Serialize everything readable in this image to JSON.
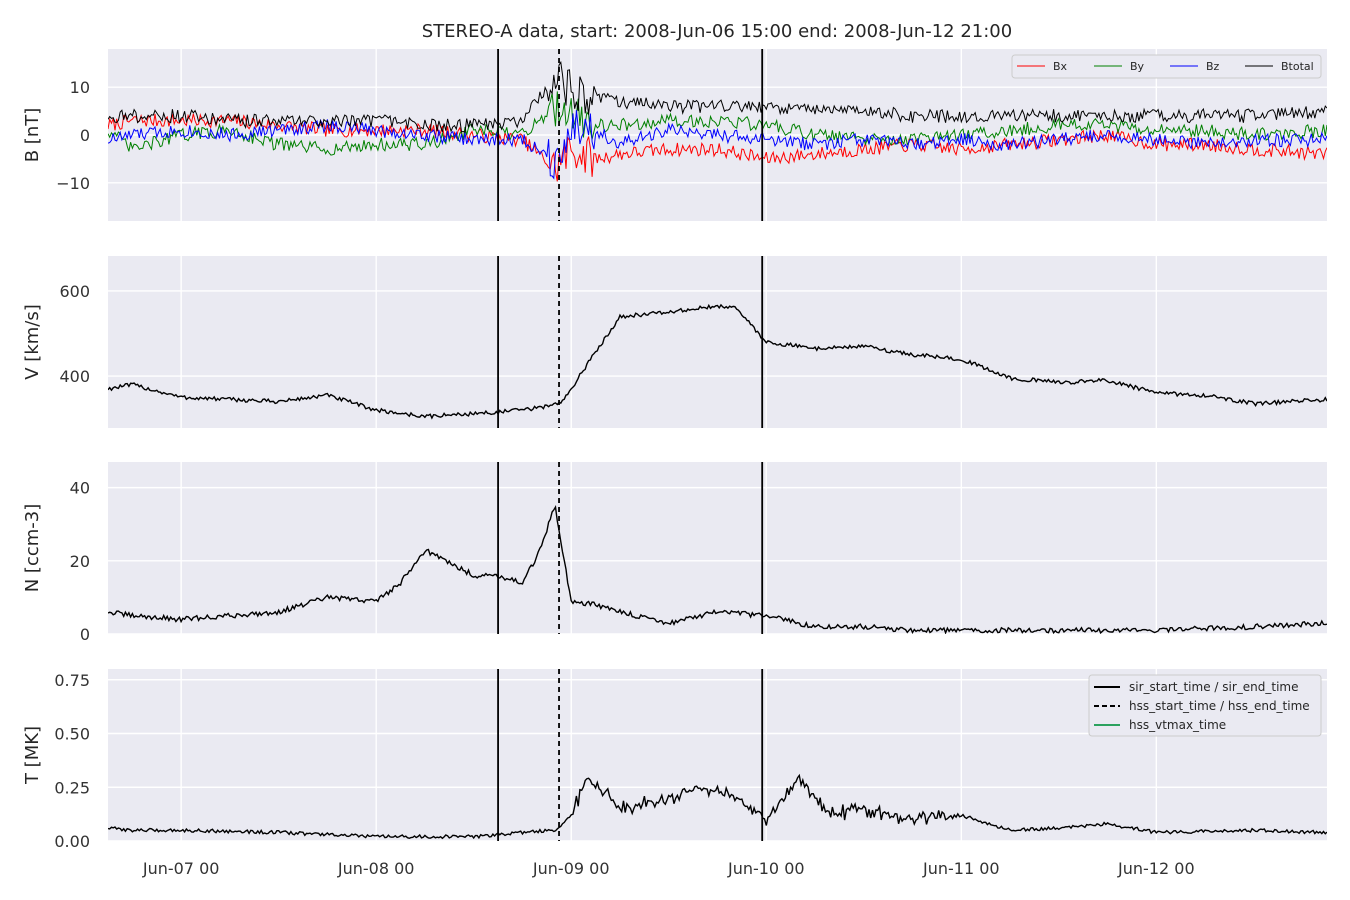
{
  "title": "STEREO-A data, start: 2008-Jun-06 15:00  end: 2008-Jun-12 21:00",
  "x_tick_labels": [
    "Jun-07 00",
    "Jun-08 00",
    "Jun-09 00",
    "Jun-10 00",
    "Jun-11 00",
    "Jun-12 00"
  ],
  "colors": {
    "panel_bg": "#eaeaf2",
    "grid": "#ffffff",
    "bx": "#ff0000",
    "by": "#008000",
    "bz": "#0000ff",
    "btotal": "#000000",
    "hss_vtmax": "#2ca25f"
  },
  "chart_data": [
    {
      "type": "line",
      "panel": "B",
      "ylabel": "B [nT]",
      "ylim": [
        -18,
        18
      ],
      "yticks": [
        -10,
        0,
        10
      ],
      "ytick_labels": [
        "−10",
        "0",
        "10"
      ],
      "xlim": [
        "2008-06-06 15:00",
        "2008-06-12 21:00"
      ],
      "grid": true,
      "legend": {
        "placement": "top-right",
        "entries": [
          "Bx",
          "By",
          "Bz",
          "Btotal"
        ]
      },
      "series": [
        {
          "name": "Bx",
          "color": "#ff0000",
          "x": [
            "2008-06-06 15:00",
            "2008-06-06 18:00",
            "2008-06-07 00:00",
            "2008-06-07 06:00",
            "2008-06-07 12:00",
            "2008-06-07 18:00",
            "2008-06-08 00:00",
            "2008-06-08 06:00",
            "2008-06-08 12:00",
            "2008-06-08 18:00",
            "2008-06-08 22:00",
            "2008-06-09 00:00",
            "2008-06-09 03:00",
            "2008-06-09 06:00",
            "2008-06-09 12:00",
            "2008-06-09 18:00",
            "2008-06-10 00:00",
            "2008-06-10 06:00",
            "2008-06-10 12:00",
            "2008-06-10 18:00",
            "2008-06-11 00:00",
            "2008-06-11 06:00",
            "2008-06-11 12:00",
            "2008-06-11 18:00",
            "2008-06-12 00:00",
            "2008-06-12 06:00",
            "2008-06-12 12:00",
            "2008-06-12 21:00"
          ],
          "values": [
            2,
            3,
            3,
            3,
            2,
            1,
            1,
            1,
            0,
            -1,
            -7,
            -3,
            -5,
            -4,
            -3,
            -3,
            -5,
            -4,
            -3,
            -2,
            -3,
            -2,
            -1,
            0,
            -2,
            -2,
            -3,
            -4
          ]
        },
        {
          "name": "By",
          "color": "#008000",
          "x": [
            "2008-06-06 15:00",
            "2008-06-06 18:00",
            "2008-06-07 00:00",
            "2008-06-07 06:00",
            "2008-06-07 12:00",
            "2008-06-07 18:00",
            "2008-06-08 00:00",
            "2008-06-08 06:00",
            "2008-06-08 12:00",
            "2008-06-08 18:00",
            "2008-06-08 22:00",
            "2008-06-09 00:00",
            "2008-06-09 03:00",
            "2008-06-09 06:00",
            "2008-06-09 12:00",
            "2008-06-09 18:00",
            "2008-06-10 00:00",
            "2008-06-10 06:00",
            "2008-06-10 12:00",
            "2008-06-10 18:00",
            "2008-06-11 00:00",
            "2008-06-11 06:00",
            "2008-06-11 12:00",
            "2008-06-11 18:00",
            "2008-06-12 00:00",
            "2008-06-12 06:00",
            "2008-06-12 12:00",
            "2008-06-12 21:00"
          ],
          "values": [
            1,
            -3,
            0,
            1,
            -2,
            -3,
            -2,
            -2,
            1,
            0,
            6,
            5,
            2,
            2,
            3,
            3,
            2,
            0,
            -1,
            -1,
            0,
            1,
            2,
            2,
            1,
            1,
            0,
            1
          ]
        },
        {
          "name": "Bz",
          "color": "#0000ff",
          "x": [
            "2008-06-06 15:00",
            "2008-06-06 18:00",
            "2008-06-07 00:00",
            "2008-06-07 06:00",
            "2008-06-07 12:00",
            "2008-06-07 18:00",
            "2008-06-08 00:00",
            "2008-06-08 06:00",
            "2008-06-08 12:00",
            "2008-06-08 18:00",
            "2008-06-08 22:00",
            "2008-06-09 00:00",
            "2008-06-09 03:00",
            "2008-06-09 06:00",
            "2008-06-09 12:00",
            "2008-06-09 18:00",
            "2008-06-10 00:00",
            "2008-06-10 06:00",
            "2008-06-10 12:00",
            "2008-06-10 18:00",
            "2008-06-11 00:00",
            "2008-06-11 06:00",
            "2008-06-11 12:00",
            "2008-06-11 18:00",
            "2008-06-12 00:00",
            "2008-06-12 06:00",
            "2008-06-12 12:00",
            "2008-06-12 21:00"
          ],
          "values": [
            -1,
            0,
            1,
            0,
            1,
            2,
            1,
            0,
            -1,
            -1,
            -5,
            2,
            1,
            -2,
            1,
            0,
            -1,
            -2,
            -1,
            -2,
            -1,
            -2,
            -1,
            0,
            -1,
            -2,
            -1,
            -1
          ]
        },
        {
          "name": "Btotal",
          "color": "#000000",
          "x": [
            "2008-06-06 15:00",
            "2008-06-06 18:00",
            "2008-06-07 00:00",
            "2008-06-07 06:00",
            "2008-06-07 12:00",
            "2008-06-07 18:00",
            "2008-06-08 00:00",
            "2008-06-08 06:00",
            "2008-06-08 12:00",
            "2008-06-08 18:00",
            "2008-06-08 22:00",
            "2008-06-09 00:00",
            "2008-06-09 03:00",
            "2008-06-09 06:00",
            "2008-06-09 12:00",
            "2008-06-09 18:00",
            "2008-06-10 00:00",
            "2008-06-10 06:00",
            "2008-06-10 12:00",
            "2008-06-10 18:00",
            "2008-06-11 00:00",
            "2008-06-11 06:00",
            "2008-06-11 12:00",
            "2008-06-11 18:00",
            "2008-06-12 00:00",
            "2008-06-12 06:00",
            "2008-06-12 12:00",
            "2008-06-12 21:00"
          ],
          "values": [
            4,
            4,
            4,
            3,
            3,
            3,
            3,
            2,
            2,
            3,
            12,
            9,
            8,
            7,
            6,
            6,
            6,
            5,
            5,
            4,
            4,
            4,
            4,
            4,
            4,
            4,
            4,
            5
          ]
        }
      ]
    },
    {
      "type": "line",
      "panel": "V",
      "ylabel": "V [km/s]",
      "ylim": [
        278,
        682
      ],
      "yticks": [
        400,
        600
      ],
      "ytick_labels": [
        "400",
        "600"
      ],
      "xlim": [
        "2008-06-06 15:00",
        "2008-06-12 21:00"
      ],
      "grid": true,
      "series": [
        {
          "x": [
            "2008-06-06 15:00",
            "2008-06-06 18:00",
            "2008-06-07 00:00",
            "2008-06-07 06:00",
            "2008-06-07 12:00",
            "2008-06-07 18:00",
            "2008-06-08 00:00",
            "2008-06-08 06:00",
            "2008-06-08 12:00",
            "2008-06-08 15:00",
            "2008-06-08 20:00",
            "2008-06-08 23:00",
            "2008-06-09 01:00",
            "2008-06-09 06:00",
            "2008-06-09 12:00",
            "2008-06-09 16:00",
            "2008-06-09 20:00",
            "2008-06-10 00:00",
            "2008-06-10 06:00",
            "2008-06-10 12:00",
            "2008-06-10 18:00",
            "2008-06-11 00:00",
            "2008-06-11 06:00",
            "2008-06-11 12:00",
            "2008-06-11 18:00",
            "2008-06-12 00:00",
            "2008-06-12 06:00",
            "2008-06-12 12:00",
            "2008-06-12 21:00"
          ],
          "values": [
            370,
            380,
            350,
            345,
            340,
            355,
            320,
            305,
            312,
            315,
            325,
            340,
            400,
            540,
            550,
            560,
            565,
            480,
            465,
            470,
            450,
            440,
            395,
            385,
            390,
            360,
            355,
            335,
            345
          ]
        }
      ]
    },
    {
      "type": "line",
      "panel": "N",
      "ylabel": "N [ccm-3]",
      "ylim": [
        0,
        47
      ],
      "yticks": [
        0,
        20,
        40
      ],
      "ytick_labels": [
        "0",
        "20",
        "40"
      ],
      "xlim": [
        "2008-06-06 15:00",
        "2008-06-12 21:00"
      ],
      "grid": true,
      "series": [
        {
          "x": [
            "2008-06-06 15:00",
            "2008-06-06 18:00",
            "2008-06-07 00:00",
            "2008-06-07 06:00",
            "2008-06-07 12:00",
            "2008-06-07 18:00",
            "2008-06-08 00:00",
            "2008-06-08 03:00",
            "2008-06-08 06:00",
            "2008-06-08 12:00",
            "2008-06-08 15:00",
            "2008-06-08 18:00",
            "2008-06-08 20:00",
            "2008-06-08 22:00",
            "2008-06-09 00:00",
            "2008-06-09 03:00",
            "2008-06-09 06:00",
            "2008-06-09 12:00",
            "2008-06-09 18:00",
            "2008-06-10 00:00",
            "2008-06-10 06:00",
            "2008-06-10 12:00",
            "2008-06-10 18:00",
            "2008-06-11 00:00",
            "2008-06-11 12:00",
            "2008-06-12 00:00",
            "2008-06-12 12:00",
            "2008-06-12 21:00"
          ],
          "values": [
            6,
            5,
            4,
            5,
            6,
            10,
            9,
            14,
            23,
            16,
            16,
            14,
            22,
            35,
            9,
            8,
            6,
            3,
            6,
            5,
            2,
            2,
            1,
            1,
            1,
            1,
            2,
            3
          ]
        }
      ]
    },
    {
      "type": "line",
      "panel": "T",
      "ylabel": "T [MK]",
      "ylim": [
        0,
        0.8
      ],
      "yticks": [
        0.0,
        0.25,
        0.5,
        0.75
      ],
      "ytick_labels": [
        "0.00",
        "0.25",
        "0.50",
        "0.75"
      ],
      "xlim": [
        "2008-06-06 15:00",
        "2008-06-12 21:00"
      ],
      "grid": true,
      "legend": {
        "placement": "top-right",
        "entries": [
          "sir_start_time / sir_end_time",
          "hss_start_time / hss_end_time",
          "hss_vtmax_time"
        ]
      },
      "series": [
        {
          "x": [
            "2008-06-06 15:00",
            "2008-06-06 18:00",
            "2008-06-07 00:00",
            "2008-06-07 12:00",
            "2008-06-08 00:00",
            "2008-06-08 12:00",
            "2008-06-08 18:00",
            "2008-06-08 22:00",
            "2008-06-09 00:00",
            "2008-06-09 02:00",
            "2008-06-09 06:00",
            "2008-06-09 12:00",
            "2008-06-09 16:00",
            "2008-06-09 20:00",
            "2008-06-10 00:00",
            "2008-06-10 04:00",
            "2008-06-10 08:00",
            "2008-06-10 12:00",
            "2008-06-10 18:00",
            "2008-06-11 00:00",
            "2008-06-11 06:00",
            "2008-06-11 12:00",
            "2008-06-11 18:00",
            "2008-06-12 00:00",
            "2008-06-12 12:00",
            "2008-06-12 21:00"
          ],
          "values": [
            0.06,
            0.05,
            0.05,
            0.04,
            0.02,
            0.02,
            0.04,
            0.05,
            0.12,
            0.3,
            0.15,
            0.2,
            0.25,
            0.2,
            0.1,
            0.3,
            0.12,
            0.15,
            0.1,
            0.12,
            0.05,
            0.06,
            0.08,
            0.04,
            0.05,
            0.04
          ]
        }
      ]
    }
  ],
  "event_lines": {
    "sir_start_time": "2008-06-08 15:00",
    "hss_start_time": "2008-06-08 22:30",
    "sir_end_time": "2008-06-09 23:30"
  }
}
